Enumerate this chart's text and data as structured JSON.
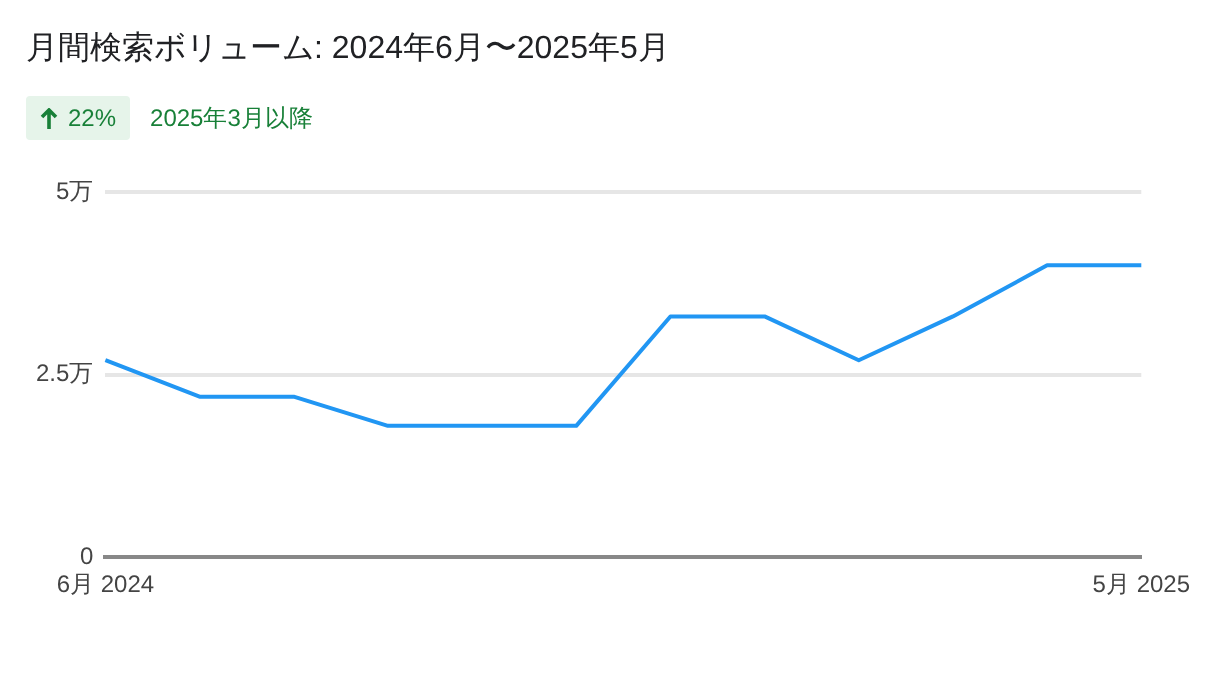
{
  "chart_data": {
    "type": "line",
    "title": "月間検索ボリューム: 2024年6月〜2025年5月",
    "annotations": [
      "22%",
      "2025年3月以降"
    ],
    "categories": [
      "6月 2024",
      null,
      null,
      null,
      null,
      null,
      null,
      null,
      null,
      null,
      null,
      "5月 2025"
    ],
    "series": [
      {
        "color": "#2196f3",
        "values": [
          2.7,
          2.2,
          2.2,
          1.8,
          1.8,
          1.8,
          3.3,
          3.3,
          2.7,
          3.3,
          4.0,
          4.0
        ]
      }
    ],
    "ylim": [
      0,
      5
    ],
    "yticks": [
      0,
      {
        "value": 2.5,
        "label": "2.5万"
      },
      {
        "value": 5,
        "label": "5万"
      }
    ],
    "grid": "y",
    "legend": false,
    "marker": "none",
    "line_style": "solid"
  }
}
